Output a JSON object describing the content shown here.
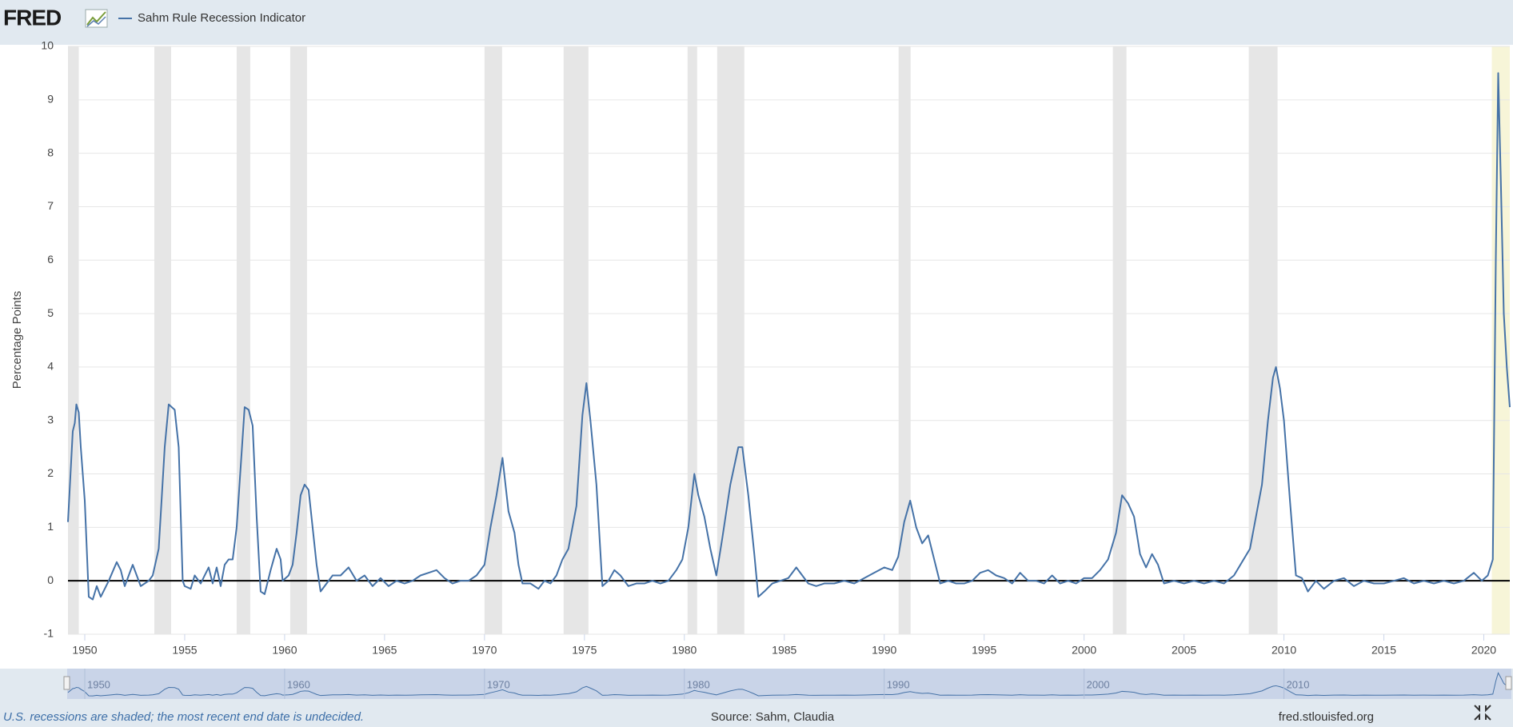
{
  "chart_data": {
    "type": "line",
    "logo": "FRED",
    "ylabel": "Percentage Points",
    "note": "U.S. recessions are shaded; the most recent end date is undecided.",
    "source": "Source: Sahm, Claudia",
    "site": "fred.stlouisfed.org",
    "grid": true,
    "xlim": [
      1949.16,
      2021.3
    ],
    "ylim": [
      -1,
      10
    ],
    "xticks": [
      1950,
      1955,
      1960,
      1965,
      1970,
      1975,
      1980,
      1985,
      1990,
      1995,
      2000,
      2005,
      2010,
      2015,
      2020
    ],
    "yticks": [
      -1,
      0,
      1,
      2,
      3,
      4,
      5,
      6,
      7,
      8,
      9,
      10
    ],
    "navigator_ticks": [
      1950,
      1960,
      1970,
      1980,
      1990,
      2000,
      2010
    ],
    "recession_color": "#e6e6e6",
    "recessions": [
      [
        1949.16,
        1949.7
      ],
      [
        1953.48,
        1954.32
      ],
      [
        1957.6,
        1958.28
      ],
      [
        1960.28,
        1961.12
      ],
      [
        1970.0,
        1970.88
      ],
      [
        1973.96,
        1975.2
      ],
      [
        1980.16,
        1980.64
      ],
      [
        1981.64,
        1983.0
      ],
      [
        1990.72,
        1991.32
      ],
      [
        2001.44,
        2002.12
      ],
      [
        2008.24,
        2009.68
      ]
    ],
    "current_recession_color": "#f7f5d8",
    "current_recession": [
      2020.4,
      2021.3
    ],
    "x": [
      1949.16,
      1949.4,
      1949.5,
      1949.58,
      1949.7,
      1949.8,
      1950.0,
      1950.2,
      1950.4,
      1950.6,
      1950.8,
      1951.2,
      1951.6,
      1951.8,
      1952.0,
      1952.4,
      1952.6,
      1952.8,
      1953.2,
      1953.4,
      1953.7,
      1954.0,
      1954.2,
      1954.5,
      1954.7,
      1954.9,
      1955.0,
      1955.3,
      1955.5,
      1955.8,
      1956.2,
      1956.4,
      1956.6,
      1956.8,
      1957.0,
      1957.2,
      1957.4,
      1957.6,
      1958.0,
      1958.2,
      1958.4,
      1958.6,
      1958.8,
      1959.0,
      1959.3,
      1959.6,
      1959.8,
      1959.9,
      1960.2,
      1960.4,
      1960.6,
      1960.8,
      1961.0,
      1961.2,
      1961.4,
      1961.6,
      1961.8,
      1962.0,
      1962.4,
      1962.8,
      1963.2,
      1963.6,
      1964.0,
      1964.4,
      1964.8,
      1965.2,
      1965.6,
      1966.0,
      1966.4,
      1966.8,
      1967.2,
      1967.6,
      1968.0,
      1968.4,
      1968.8,
      1969.2,
      1969.6,
      1970.0,
      1970.3,
      1970.6,
      1970.9,
      1971.2,
      1971.5,
      1971.7,
      1971.9,
      1972.3,
      1972.7,
      1973.0,
      1973.3,
      1973.6,
      1973.9,
      1974.2,
      1974.6,
      1974.9,
      1975.1,
      1975.3,
      1975.6,
      1975.9,
      1976.2,
      1976.5,
      1976.8,
      1977.2,
      1977.6,
      1978.0,
      1978.4,
      1978.8,
      1979.2,
      1979.6,
      1979.9,
      1980.2,
      1980.5,
      1980.7,
      1981.0,
      1981.3,
      1981.6,
      1981.9,
      1982.3,
      1982.7,
      1982.9,
      1983.2,
      1983.5,
      1983.7,
      1984.0,
      1984.4,
      1984.8,
      1985.2,
      1985.6,
      1985.9,
      1986.2,
      1986.6,
      1987.0,
      1987.5,
      1988.0,
      1988.5,
      1989.0,
      1989.5,
      1990.0,
      1990.4,
      1990.7,
      1991.0,
      1991.3,
      1991.6,
      1991.9,
      1992.2,
      1992.5,
      1992.8,
      1993.2,
      1993.6,
      1994.0,
      1994.4,
      1994.8,
      1995.2,
      1995.6,
      1996.0,
      1996.4,
      1996.8,
      1997.2,
      1997.6,
      1998.0,
      1998.4,
      1998.8,
      1999.2,
      1999.6,
      2000.0,
      2000.4,
      2000.8,
      2001.2,
      2001.6,
      2001.9,
      2002.2,
      2002.5,
      2002.8,
      2003.1,
      2003.4,
      2003.7,
      2004.0,
      2004.5,
      2005.0,
      2005.5,
      2006.0,
      2006.5,
      2007.0,
      2007.5,
      2007.9,
      2008.3,
      2008.6,
      2008.9,
      2009.2,
      2009.45,
      2009.6,
      2009.8,
      2010.0,
      2010.3,
      2010.6,
      2010.9,
      2011.2,
      2011.6,
      2012.0,
      2012.5,
      2013.0,
      2013.5,
      2014.0,
      2014.5,
      2015.0,
      2015.5,
      2016.0,
      2016.5,
      2017.0,
      2017.5,
      2018.0,
      2018.5,
      2019.0,
      2019.5,
      2019.9,
      2020.2,
      2020.45,
      2020.6,
      2020.72,
      2020.85,
      2021.0,
      2021.15,
      2021.3
    ],
    "series": [
      {
        "name": "Sahm Rule Recession Indicator",
        "color": "#4572a7",
        "values": [
          1.1,
          2.8,
          2.95,
          3.3,
          3.15,
          2.5,
          1.5,
          -0.3,
          -0.35,
          -0.1,
          -0.3,
          0,
          0.35,
          0.2,
          -0.1,
          0.3,
          0.1,
          -0.1,
          0,
          0.1,
          0.6,
          2.5,
          3.3,
          3.2,
          2.5,
          0,
          -0.1,
          -0.15,
          0.1,
          -0.05,
          0.25,
          -0.05,
          0.25,
          -0.1,
          0.3,
          0.4,
          0.4,
          1,
          3.25,
          3.2,
          2.9,
          1.2,
          -0.2,
          -0.25,
          0.2,
          0.6,
          0.4,
          0,
          0.1,
          0.3,
          0.9,
          1.6,
          1.8,
          1.7,
          1,
          0.3,
          -0.2,
          -0.1,
          0.1,
          0.1,
          0.25,
          0,
          0.1,
          -0.1,
          0.05,
          -0.1,
          0,
          -0.05,
          0,
          0.1,
          0.15,
          0.2,
          0.05,
          -0.05,
          0,
          0,
          0.1,
          0.3,
          1,
          1.6,
          2.3,
          1.3,
          0.9,
          0.3,
          -0.05,
          -0.05,
          -0.15,
          0,
          -0.05,
          0.1,
          0.4,
          0.6,
          1.4,
          3.1,
          3.7,
          3,
          1.8,
          -0.1,
          0,
          0.2,
          0.1,
          -0.1,
          -0.05,
          -0.05,
          0,
          -0.05,
          0,
          0.2,
          0.4,
          1,
          2,
          1.6,
          1.2,
          0.6,
          0.1,
          0.8,
          1.8,
          2.5,
          2.5,
          1.6,
          0.5,
          -0.3,
          -0.2,
          -0.05,
          0,
          0.05,
          0.25,
          0.1,
          -0.05,
          -0.1,
          -0.05,
          -0.05,
          0,
          -0.05,
          0.05,
          0.15,
          0.25,
          0.2,
          0.45,
          1.1,
          1.5,
          1,
          0.7,
          0.85,
          0.4,
          -0.05,
          0,
          -0.05,
          -0.05,
          0,
          0.15,
          0.2,
          0.1,
          0.05,
          -0.05,
          0.15,
          0,
          0,
          -0.05,
          0.1,
          -0.05,
          0,
          -0.05,
          0.05,
          0.05,
          0.2,
          0.4,
          0.9,
          1.6,
          1.45,
          1.2,
          0.5,
          0.25,
          0.5,
          0.3,
          -0.05,
          0,
          -0.05,
          0,
          -0.05,
          0,
          -0.05,
          0.1,
          0.35,
          0.6,
          1.2,
          1.8,
          3,
          3.8,
          4,
          3.6,
          3,
          1.5,
          0.1,
          0.05,
          -0.2,
          0,
          -0.15,
          0,
          0.05,
          -0.1,
          0,
          -0.05,
          -0.05,
          0,
          0.05,
          -0.05,
          0,
          -0.05,
          0,
          -0.05,
          0,
          0.15,
          0,
          0.1,
          0.4,
          6,
          9.5,
          7.5,
          5,
          4,
          3.25
        ]
      }
    ]
  }
}
